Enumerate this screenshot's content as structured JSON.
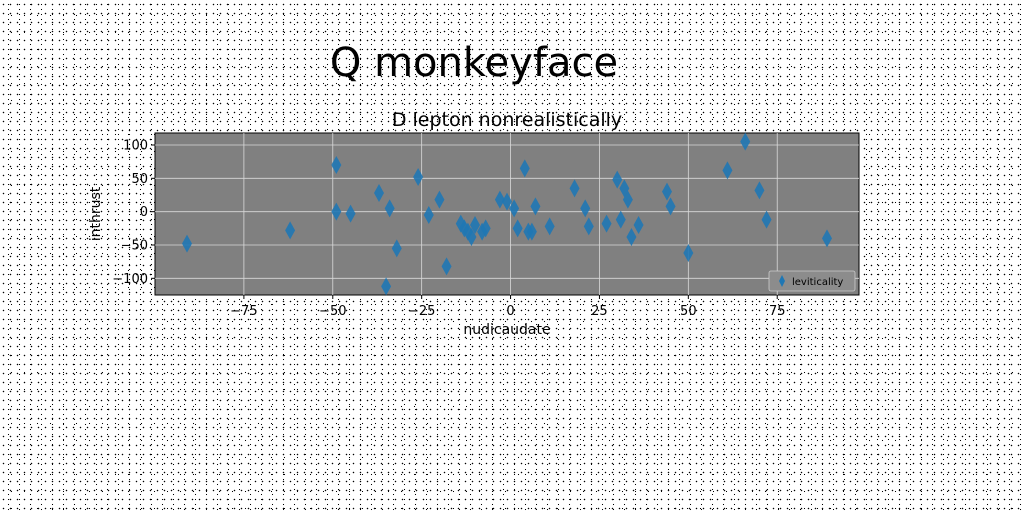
{
  "figure": {
    "suptitle": "Q monkeyface"
  },
  "chart_data": {
    "type": "scatter",
    "title": "D lepton nonrealistically",
    "xlabel": "nudicaudate",
    "ylabel": "inthrust",
    "xlim": [
      -100,
      98
    ],
    "ylim": [
      -125,
      118
    ],
    "xticks": [
      -75,
      -50,
      -25,
      0,
      25,
      50,
      75
    ],
    "yticks": [
      -100,
      -50,
      0,
      50,
      100
    ],
    "grid": true,
    "legend_position": "lower-right",
    "colors": {
      "axes_background": "#808080",
      "marker": "#1f77b4",
      "grid": "#d9d9d9"
    },
    "marker": "thin-diamond",
    "series": [
      {
        "name": "leviticality",
        "x": [
          -91,
          -62,
          -49,
          -49,
          -45,
          -37,
          -35,
          -34,
          -32,
          -26,
          -23,
          -20,
          -18,
          -14,
          -13,
          -12,
          -11,
          -10,
          -8,
          -7,
          -3,
          -1,
          1,
          2,
          4,
          5,
          6,
          7,
          11,
          18,
          21,
          22,
          27,
          30,
          31,
          32,
          33,
          34,
          36,
          44,
          45,
          50,
          61,
          66,
          70,
          72,
          89
        ],
        "y": [
          -48,
          -28,
          70,
          0,
          -3,
          28,
          -112,
          5,
          -55,
          52,
          -5,
          18,
          -82,
          -18,
          -25,
          -30,
          -38,
          -20,
          -30,
          -25,
          18,
          15,
          5,
          -25,
          65,
          -30,
          -30,
          8,
          -22,
          35,
          5,
          -22,
          -18,
          48,
          -12,
          35,
          18,
          -38,
          -20,
          30,
          8,
          -62,
          62,
          105,
          32,
          -12,
          -40
        ]
      }
    ]
  }
}
